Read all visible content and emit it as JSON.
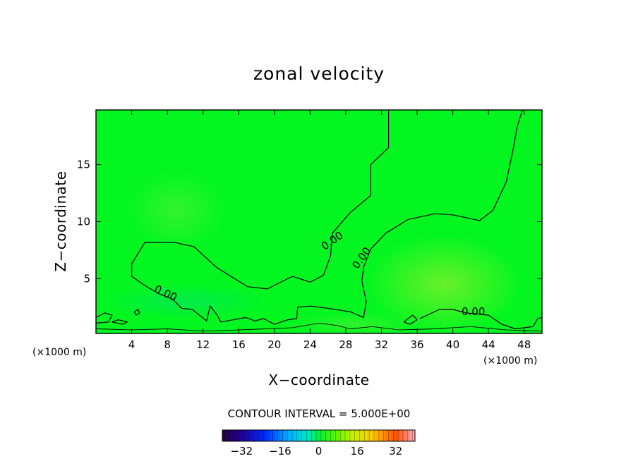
{
  "chart_data": {
    "type": "heatmap",
    "title": "zonal velocity",
    "xlabel": "X−coordinate",
    "ylabel": "Z−coordinate",
    "x_unit_left": "(×1000 m)",
    "x_unit_right": "(×1000 m)",
    "xlim": [
      0,
      50
    ],
    "ylim": [
      0.2,
      19.8
    ],
    "x_ticks": [
      4,
      8,
      12,
      16,
      20,
      24,
      28,
      32,
      36,
      40,
      44,
      48
    ],
    "y_ticks": [
      5,
      10,
      15
    ],
    "grid": false,
    "contour_interval_label": "CONTOUR INTERVAL = 5.000E+00",
    "contour_labels": [
      {
        "text": "0.00",
        "x": 26.5,
        "y": 8.3
      },
      {
        "text": "0.00",
        "x": 29.8,
        "y": 6.8
      },
      {
        "text": "0.00",
        "x": 7.8,
        "y": 3.7
      },
      {
        "text": "0.00",
        "x": 42.3,
        "y": 2.1
      }
    ],
    "colorbar": {
      "min": -40,
      "max": 40,
      "tick_values": [
        -32,
        -16,
        0,
        16,
        32
      ],
      "tick_labels": [
        "−32",
        "−16",
        "0",
        "16",
        "32"
      ]
    },
    "field_features": [
      {
        "x": 9,
        "y": 11,
        "value": 1.5
      },
      {
        "x": 39,
        "y": 4.5,
        "value": 2.5
      },
      {
        "x": 10,
        "y": 3,
        "value": -1.5
      },
      {
        "x": 29,
        "y": 1,
        "value": 1.5
      }
    ],
    "contours": [
      [
        [
          32.8,
          19.8
        ],
        [
          32.8,
          16.5
        ],
        [
          30.8,
          15.0
        ],
        [
          30.8,
          12.3
        ],
        [
          28.5,
          10.8
        ],
        [
          26.5,
          9.0
        ],
        [
          26.3,
          7.0
        ],
        [
          25.5,
          5.3
        ],
        [
          24.0,
          4.7
        ],
        [
          22.0,
          5.2
        ],
        [
          19.2,
          4.1
        ],
        [
          17.0,
          4.3
        ],
        [
          13.5,
          6.0
        ],
        [
          11.0,
          7.8
        ],
        [
          8.7,
          8.2
        ],
        [
          5.5,
          8.2
        ],
        [
          4.0,
          6.3
        ],
        [
          4.0,
          5.2
        ],
        [
          5.5,
          4.4
        ],
        [
          7.0,
          3.7
        ],
        [
          8.6,
          3.2
        ],
        [
          9.6,
          2.4
        ],
        [
          10.8,
          2.3
        ],
        [
          12.4,
          1.3
        ],
        [
          12.8,
          2.6
        ],
        [
          13.6,
          1.8
        ],
        [
          14.0,
          1.2
        ],
        [
          16.8,
          1.6
        ],
        [
          17.8,
          1.3
        ],
        [
          18.8,
          1.5
        ],
        [
          20.0,
          1.0
        ],
        [
          21.5,
          1.4
        ],
        [
          22.5,
          1.5
        ],
        [
          22.6,
          2.5
        ],
        [
          24.0,
          2.6
        ],
        [
          26.0,
          2.4
        ],
        [
          28.5,
          2.1
        ],
        [
          30.0,
          1.6
        ],
        [
          30.3,
          3.0
        ],
        [
          29.8,
          4.8
        ],
        [
          30.0,
          6.0
        ],
        [
          30.8,
          7.6
        ],
        [
          32.5,
          9.0
        ],
        [
          35.0,
          10.2
        ],
        [
          38.0,
          10.7
        ],
        [
          40.0,
          10.6
        ],
        [
          43.0,
          10.1
        ],
        [
          44.5,
          11.0
        ],
        [
          46.0,
          13.5
        ],
        [
          46.8,
          16.5
        ],
        [
          47.2,
          18.3
        ],
        [
          47.8,
          19.8
        ]
      ],
      [
        [
          0.0,
          1.6
        ],
        [
          1.0,
          2.0
        ],
        [
          1.8,
          1.8
        ],
        [
          1.4,
          1.2
        ],
        [
          0.0,
          1.1
        ]
      ],
      [
        [
          1.8,
          1.2
        ],
        [
          3.0,
          1.0
        ],
        [
          3.5,
          1.2
        ],
        [
          2.5,
          1.4
        ],
        [
          1.8,
          1.2
        ]
      ],
      [
        [
          4.3,
          2.1
        ],
        [
          4.7,
          2.3
        ],
        [
          4.9,
          2.0
        ],
        [
          4.5,
          1.8
        ],
        [
          4.3,
          2.1
        ]
      ],
      [
        [
          34.5,
          1.2
        ],
        [
          35.5,
          1.8
        ],
        [
          36.0,
          1.4
        ],
        [
          35.2,
          1.0
        ],
        [
          34.5,
          1.2
        ]
      ],
      [
        [
          36.3,
          1.5
        ],
        [
          38.5,
          2.3
        ],
        [
          40.0,
          2.3
        ],
        [
          41.5,
          2.0
        ],
        [
          44.0,
          1.8
        ],
        [
          45.5,
          1.0
        ],
        [
          47.0,
          0.6
        ],
        [
          49.0,
          0.8
        ]
      ],
      [
        [
          49.0,
          0.8
        ],
        [
          49.5,
          1.5
        ],
        [
          50.0,
          1.6
        ]
      ],
      [
        [
          0.0,
          0.6
        ],
        [
          4.0,
          0.5
        ],
        [
          8.0,
          0.6
        ],
        [
          12.0,
          0.4
        ],
        [
          16.0,
          0.5
        ],
        [
          19.0,
          0.6
        ],
        [
          22.0,
          0.7
        ],
        [
          25.0,
          1.1
        ],
        [
          27.0,
          0.9
        ],
        [
          28.5,
          0.6
        ],
        [
          31.0,
          0.8
        ],
        [
          34.0,
          0.5
        ],
        [
          38.0,
          0.6
        ],
        [
          42.0,
          0.8
        ],
        [
          46.0,
          0.5
        ],
        [
          50.0,
          0.4
        ]
      ]
    ]
  }
}
